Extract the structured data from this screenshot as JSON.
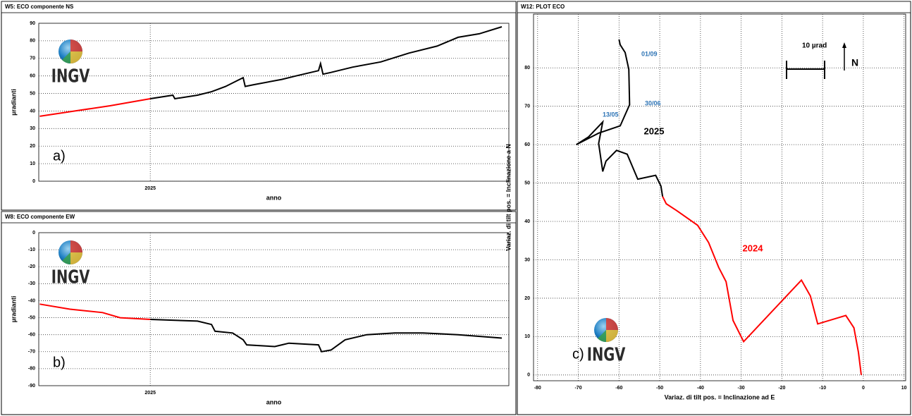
{
  "chart_data": [
    {
      "type": "line",
      "title": "W5: ECO componente NS",
      "xlabel": "anno",
      "ylabel": "µradianti",
      "logo": "INGV",
      "grid": true,
      "x": [
        2024.78,
        2024.85,
        2024.92,
        2025.0,
        2025.045,
        2025.049,
        2025.094,
        2025.122,
        2025.15,
        2025.178,
        2025.185,
        2025.189,
        2025.206,
        2025.262,
        2025.29,
        2025.335,
        2025.339,
        2025.344,
        2025.36,
        2025.403,
        2025.459,
        2025.515,
        2025.571,
        2025.613,
        2025.655,
        2025.7
      ],
      "xlim": [
        2024.778,
        2025.714
      ],
      "xticks": [
        2025
      ],
      "ylim": [
        0,
        90
      ],
      "yticks": [
        0,
        10,
        20,
        30,
        40,
        50,
        60,
        70,
        80,
        90
      ],
      "series": [
        {
          "color": "#ff0000",
          "values": [
            37,
            40,
            43,
            47,
            null,
            null,
            null,
            null,
            null,
            null,
            null,
            null,
            null,
            null,
            null,
            null,
            null,
            null,
            null,
            null,
            null,
            null,
            null,
            null,
            null,
            null
          ]
        },
        {
          "color": "#000000",
          "values": [
            null,
            null,
            null,
            47,
            49,
            47,
            49,
            51,
            54,
            58,
            59,
            54,
            55,
            58,
            60,
            63,
            67,
            61,
            62,
            65,
            68,
            73,
            77,
            82,
            84,
            88
          ]
        }
      ],
      "annotations": [
        {
          "text": "a)",
          "color": "#000000"
        }
      ]
    },
    {
      "type": "line",
      "title": "W8: ECO componente EW",
      "xlabel": "anno",
      "ylabel": "µradianti",
      "logo": "INGV",
      "grid": true,
      "x": [
        2024.78,
        2024.84,
        2024.905,
        2024.94,
        2025.0,
        2025.094,
        2025.122,
        2025.129,
        2025.164,
        2025.185,
        2025.192,
        2025.248,
        2025.262,
        2025.276,
        2025.335,
        2025.341,
        2025.36,
        2025.388,
        2025.431,
        2025.487,
        2025.543,
        2025.613,
        2025.7
      ],
      "xlim": [
        2024.778,
        2025.714
      ],
      "xticks": [
        2025
      ],
      "ylim": [
        -90,
        0
      ],
      "yticks": [
        -90,
        -80,
        -70,
        -60,
        -50,
        -40,
        -30,
        -20,
        -10,
        0
      ],
      "series": [
        {
          "color": "#ff0000",
          "values": [
            -42,
            -45,
            -47,
            -50,
            -51,
            null,
            null,
            null,
            null,
            null,
            null,
            null,
            null,
            null,
            null,
            null,
            null,
            null,
            null,
            null,
            null,
            null,
            null
          ]
        },
        {
          "color": "#000000",
          "values": [
            null,
            null,
            null,
            null,
            -51,
            -52,
            -54,
            -58,
            -59,
            -63,
            -66,
            -67,
            -66,
            -65,
            -66,
            -70,
            -69,
            -63,
            -60,
            -59,
            -59,
            -60,
            -62
          ]
        }
      ],
      "annotations": [
        {
          "text": "b)",
          "color": "#000000"
        }
      ]
    },
    {
      "type": "line",
      "title": "W12: PLOT ECO",
      "xlabel": "Variaz. di tilt pos. = Inclinazione ad E",
      "ylabel": "Variaz. di tilt pos. = Inclinazione a N",
      "logo": "INGV",
      "grid": true,
      "xlim": [
        -81,
        10.4
      ],
      "xticks": [
        -80,
        -70,
        -60,
        -50,
        -40,
        -30,
        -20,
        -10,
        0,
        10
      ],
      "ylim": [
        -1.5,
        94
      ],
      "yticks": [
        0,
        10,
        20,
        30,
        40,
        50,
        60,
        70,
        80
      ],
      "series": [
        {
          "name": "2024",
          "color": "#ff0000",
          "x": [
            -0.5,
            -1.2,
            -2.3,
            -4.3,
            -11.2,
            -13,
            -15.2,
            -29.4,
            -32,
            -33.7,
            -35.5,
            -38,
            -40.7,
            -45.8,
            -48.4,
            -49.3
          ],
          "values": [
            0,
            5.9,
            12.3,
            15.5,
            13.3,
            20.6,
            24.7,
            8.7,
            14.2,
            24.3,
            28,
            34.5,
            39,
            42.8,
            44.6,
            46.5
          ]
        },
        {
          "name": "2025",
          "color": "#000000",
          "x": [
            -49.3,
            -49.7,
            -51,
            -55.4,
            -58,
            -60.6,
            -63.2,
            -64,
            -65,
            -64,
            -67.5,
            -70.5,
            -65,
            -59.7,
            -57.4,
            -57.6,
            -58.5,
            -59.7,
            -60
          ],
          "values": [
            46.5,
            49.2,
            52,
            51,
            57.5,
            58.5,
            55.7,
            53,
            60.3,
            65.9,
            62,
            60,
            63,
            64.9,
            70.4,
            79.6,
            84,
            86,
            87.4
          ]
        }
      ],
      "annotations": [
        {
          "text": "01/09",
          "color": "#2e74b5"
        },
        {
          "text": "30/06",
          "color": "#2e74b5"
        },
        {
          "text": "13/05",
          "color": "#2e74b5"
        },
        {
          "text": "10 µrad",
          "color": "#000000"
        },
        {
          "text": "N",
          "color": "#000000"
        },
        {
          "text": "c)",
          "color": "#000000"
        }
      ]
    }
  ]
}
